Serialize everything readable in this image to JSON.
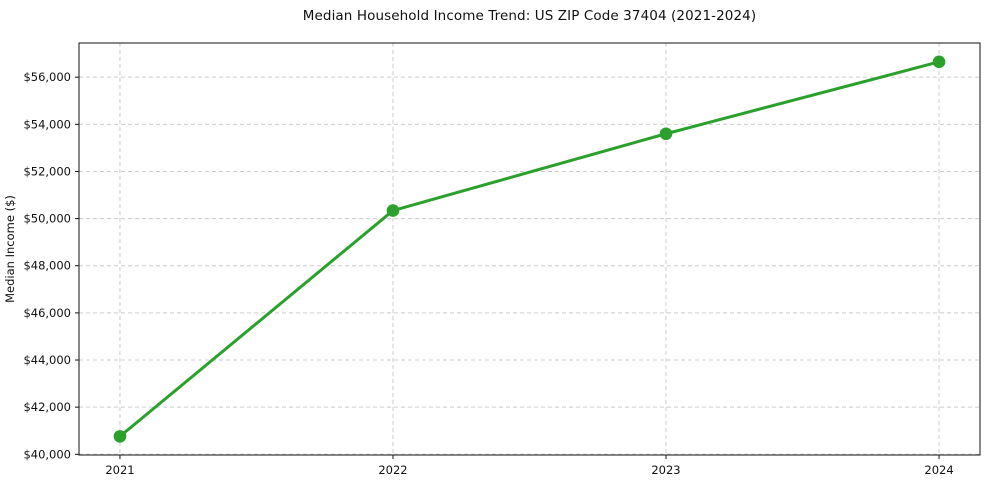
{
  "chart_data": {
    "type": "line",
    "title": "Median Household Income Trend: US ZIP Code 37404 (2021-2024)",
    "xlabel": "",
    "ylabel": "Median Income ($)",
    "x": [
      2021,
      2022,
      2023,
      2024
    ],
    "xtick_labels": [
      "2021",
      "2022",
      "2023",
      "2024"
    ],
    "values": [
      40760,
      50340,
      53600,
      56650
    ],
    "yticks": [
      40000,
      42000,
      44000,
      46000,
      48000,
      50000,
      52000,
      54000,
      56000
    ],
    "ytick_labels": [
      "$40,000",
      "$42,000",
      "$44,000",
      "$46,000",
      "$48,000",
      "$50,000",
      "$52,000",
      "$54,000",
      "$56,000"
    ],
    "xlim": [
      2020.85,
      2024.15
    ],
    "ylim": [
      39970,
      57450
    ],
    "grid": true,
    "legend": "none",
    "line_color": "#2ca02c",
    "marker": "circle",
    "background_color": "#ffffff",
    "grid_color": "#cccccc",
    "text_color": "#111111"
  }
}
